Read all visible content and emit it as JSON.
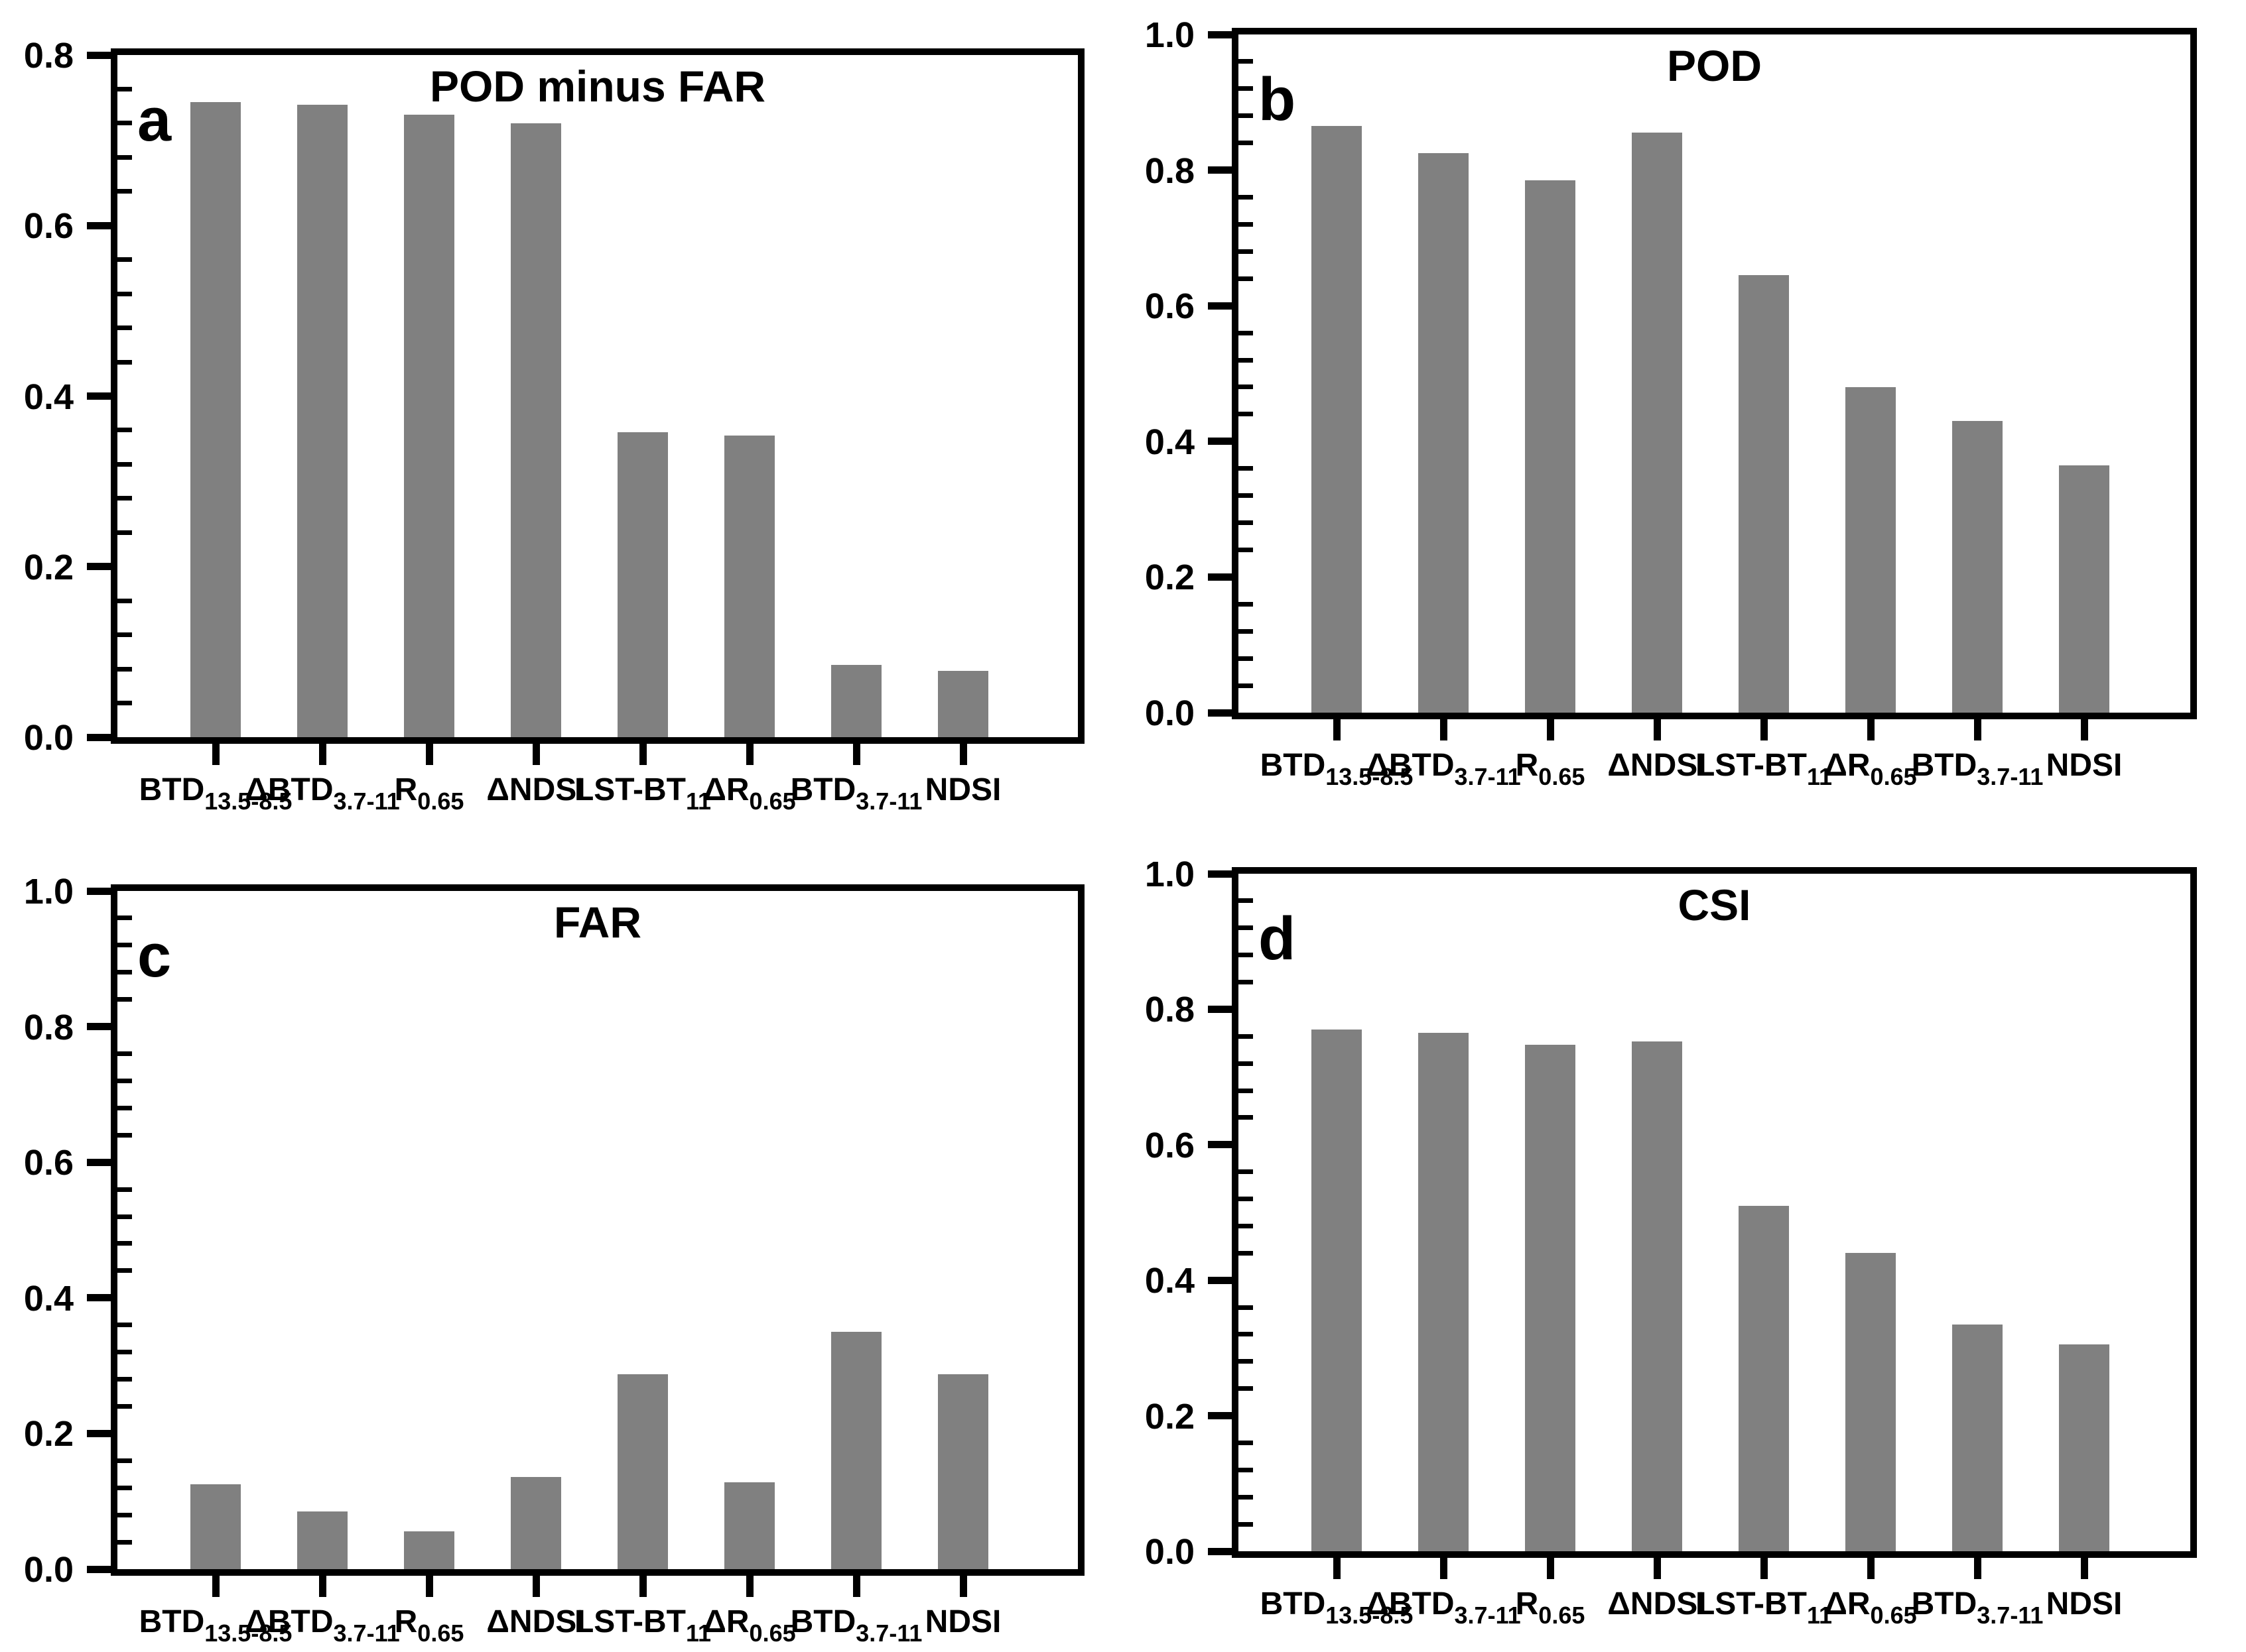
{
  "figure": {
    "background": "#ffffff",
    "axis_color": "#000000",
    "bar_color": "#808080",
    "layout": "2x2 grid of bar chart panels"
  },
  "chart_data": [
    {
      "id": "a",
      "panel_letter": "a",
      "title": "POD minus FAR",
      "type": "bar",
      "bar_color": "#808080",
      "ylim": [
        0,
        0.8
      ],
      "ytick_labels": [
        "0.0",
        "0.2",
        "0.4",
        "0.6",
        "0.8"
      ],
      "ytick_step": 0.2,
      "minor_tick_step": 0.04,
      "grid": false,
      "legend": "none",
      "categories": [
        {
          "main": "BTD",
          "sub": "13.5-8.5"
        },
        {
          "main": "ΔBTD",
          "sub": "3.7-11"
        },
        {
          "main": "R",
          "sub": "0.65"
        },
        {
          "main": "ΔNDSI",
          "sub": ""
        },
        {
          "main": "LST-BT",
          "sub": "11"
        },
        {
          "main": "ΔR",
          "sub": "0.65"
        },
        {
          "main": "BTD",
          "sub": "3.7-11"
        },
        {
          "main": "NDSI",
          "sub": ""
        }
      ],
      "values": [
        0.745,
        0.742,
        0.73,
        0.72,
        0.358,
        0.354,
        0.085,
        0.078
      ]
    },
    {
      "id": "b",
      "panel_letter": "b",
      "title": "POD",
      "type": "bar",
      "bar_color": "#808080",
      "ylim": [
        0,
        1.0
      ],
      "ytick_labels": [
        "0.0",
        "0.2",
        "0.4",
        "0.6",
        "0.8",
        "1.0"
      ],
      "ytick_step": 0.2,
      "minor_tick_step": 0.04,
      "grid": false,
      "legend": "none",
      "categories": [
        {
          "main": "BTD",
          "sub": "13.5-8.5"
        },
        {
          "main": "ΔBTD",
          "sub": "3.7-11"
        },
        {
          "main": "R",
          "sub": "0.65"
        },
        {
          "main": "ΔNDSI",
          "sub": ""
        },
        {
          "main": "LST-BT",
          "sub": "11"
        },
        {
          "main": "ΔR",
          "sub": "0.65"
        },
        {
          "main": "BTD",
          "sub": "3.7-11"
        },
        {
          "main": "NDSI",
          "sub": ""
        }
      ],
      "values": [
        0.865,
        0.825,
        0.785,
        0.855,
        0.645,
        0.48,
        0.43,
        0.365
      ]
    },
    {
      "id": "c",
      "panel_letter": "c",
      "title": "FAR",
      "type": "bar",
      "bar_color": "#808080",
      "ylim": [
        0,
        1.0
      ],
      "ytick_labels": [
        "0.0",
        "0.2",
        "0.4",
        "0.6",
        "0.8",
        "1.0"
      ],
      "ytick_step": 0.2,
      "minor_tick_step": 0.04,
      "grid": false,
      "legend": "none",
      "categories": [
        {
          "main": "BTD",
          "sub": "13.5-8.5"
        },
        {
          "main": "ΔBTD",
          "sub": "3.7-11"
        },
        {
          "main": "R",
          "sub": "0.65"
        },
        {
          "main": "ΔNDSI",
          "sub": ""
        },
        {
          "main": "LST-BT",
          "sub": "11"
        },
        {
          "main": "ΔR",
          "sub": "0.65"
        },
        {
          "main": "BTD",
          "sub": "3.7-11"
        },
        {
          "main": "NDSI",
          "sub": ""
        }
      ],
      "values": [
        0.125,
        0.085,
        0.056,
        0.136,
        0.287,
        0.128,
        0.35,
        0.287
      ]
    },
    {
      "id": "d",
      "panel_letter": "d",
      "title": "CSI",
      "type": "bar",
      "bar_color": "#808080",
      "ylim": [
        0,
        1.0
      ],
      "ytick_labels": [
        "0.0",
        "0.2",
        "0.4",
        "0.6",
        "0.8",
        "1.0"
      ],
      "ytick_step": 0.2,
      "minor_tick_step": 0.04,
      "grid": false,
      "legend": "none",
      "categories": [
        {
          "main": "BTD",
          "sub": "13.5-8.5"
        },
        {
          "main": "ΔBTD",
          "sub": "3.7-11"
        },
        {
          "main": "R",
          "sub": "0.65"
        },
        {
          "main": "ΔNDSI",
          "sub": ""
        },
        {
          "main": "LST-BT",
          "sub": "11"
        },
        {
          "main": "ΔR",
          "sub": "0.65"
        },
        {
          "main": "BTD",
          "sub": "3.7-11"
        },
        {
          "main": "NDSI",
          "sub": ""
        }
      ],
      "values": [
        0.77,
        0.765,
        0.748,
        0.752,
        0.51,
        0.44,
        0.335,
        0.305
      ]
    }
  ]
}
